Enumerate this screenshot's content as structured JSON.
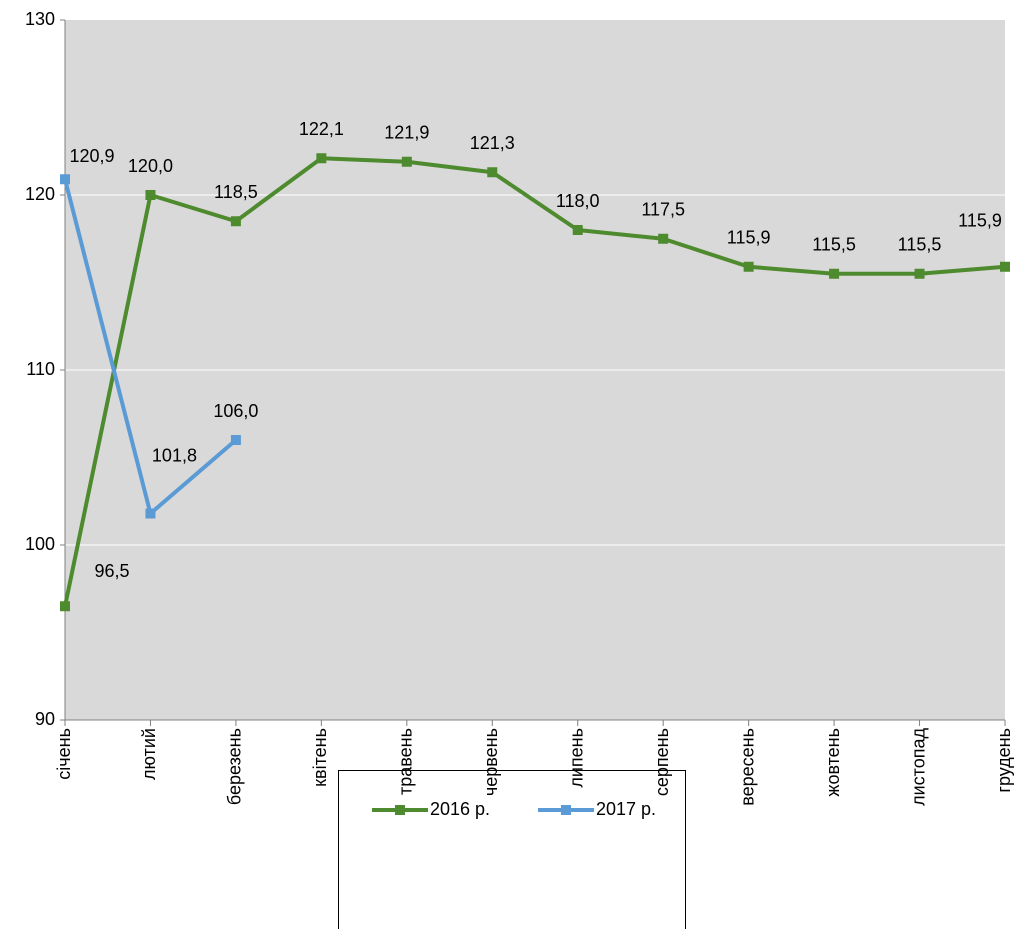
{
  "chart_data": {
    "type": "line",
    "categories": [
      "січень",
      "лютий",
      "березень",
      "квітень",
      "травень",
      "червень",
      "липень",
      "серпень",
      "вересень",
      "жовтень",
      "листопад",
      "грудень"
    ],
    "series": [
      {
        "name": "2016 р.",
        "color": "#4e8a2e",
        "values": [
          96.5,
          120.0,
          118.5,
          122.1,
          121.9,
          121.3,
          118.0,
          117.5,
          115.9,
          115.5,
          115.5,
          115.9
        ],
        "value_labels": [
          "96,5",
          "120,0",
          "118,5",
          "122,1",
          "121,9",
          "121,3",
          "118,0",
          "117,5",
          "115,9",
          "115,5",
          "115,5",
          "115,9"
        ]
      },
      {
        "name": "2017 р.",
        "color": "#5b9bd5",
        "values": [
          120.9,
          101.8,
          106.0,
          null,
          null,
          null,
          null,
          null,
          null,
          null,
          null,
          null
        ],
        "value_labels": [
          "120,9",
          "101,8",
          "106,0",
          null,
          null,
          null,
          null,
          null,
          null,
          null,
          null,
          null
        ]
      }
    ],
    "ylim": [
      90,
      130
    ],
    "yticks": [
      90,
      100,
      110,
      120,
      130
    ],
    "grid": true,
    "legend": "bottom"
  }
}
